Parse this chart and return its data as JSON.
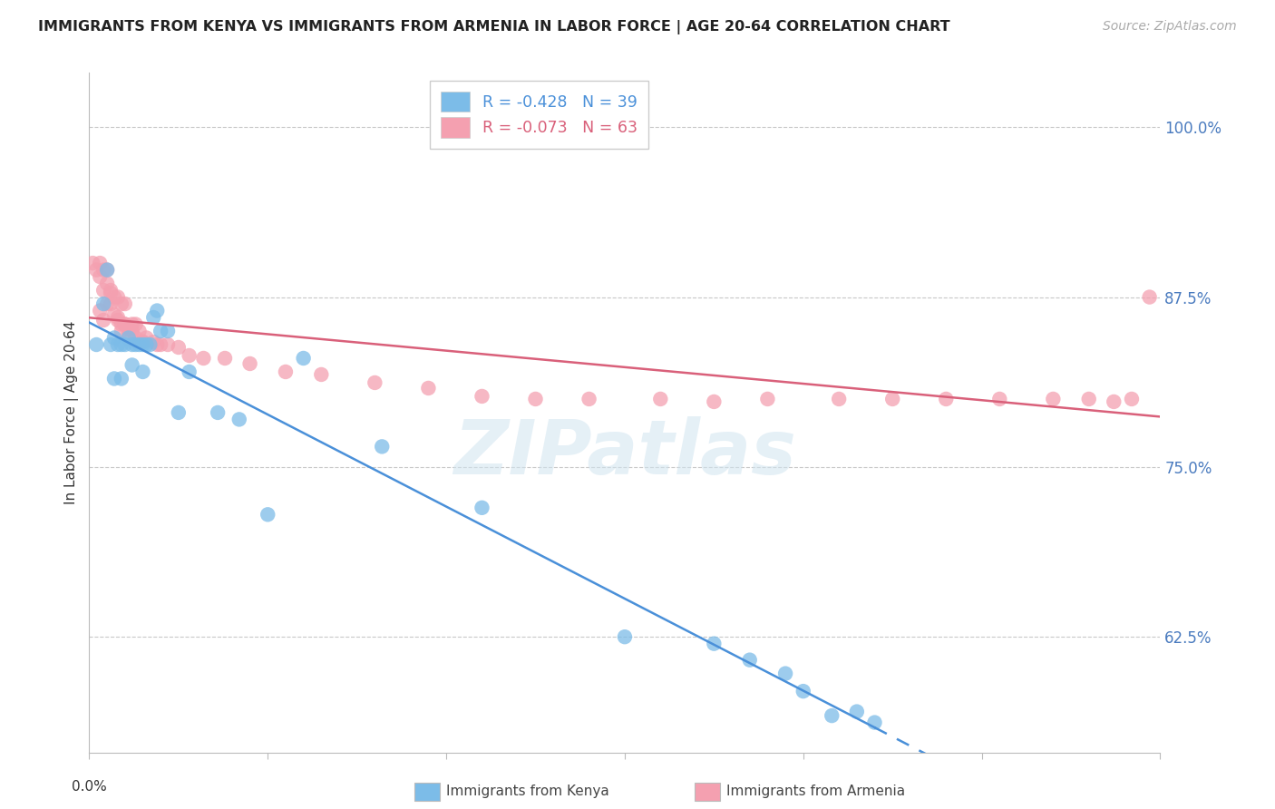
{
  "title": "IMMIGRANTS FROM KENYA VS IMMIGRANTS FROM ARMENIA IN LABOR FORCE | AGE 20-64 CORRELATION CHART",
  "source": "Source: ZipAtlas.com",
  "ylabel": "In Labor Force | Age 20-64",
  "ytick_labels": [
    "100.0%",
    "87.5%",
    "75.0%",
    "62.5%"
  ],
  "ytick_values": [
    1.0,
    0.875,
    0.75,
    0.625
  ],
  "xlim": [
    0.0,
    0.3
  ],
  "ylim": [
    0.54,
    1.04
  ],
  "kenya_R": "-0.428",
  "kenya_N": "39",
  "armenia_R": "-0.073",
  "armenia_N": "63",
  "kenya_color": "#7cbce8",
  "armenia_color": "#f4a0b0",
  "kenya_line_color": "#4a90d9",
  "armenia_line_color": "#d9607a",
  "watermark": "ZIPatlas",
  "kenya_x": [
    0.002,
    0.004,
    0.005,
    0.006,
    0.007,
    0.007,
    0.008,
    0.009,
    0.009,
    0.01,
    0.011,
    0.012,
    0.012,
    0.013,
    0.014,
    0.015,
    0.015,
    0.016,
    0.017,
    0.018,
    0.019,
    0.02,
    0.022,
    0.025,
    0.028,
    0.036,
    0.042,
    0.05,
    0.06,
    0.082,
    0.11,
    0.15,
    0.175,
    0.185,
    0.195,
    0.2,
    0.208,
    0.215,
    0.22
  ],
  "kenya_y": [
    0.84,
    0.87,
    0.895,
    0.84,
    0.845,
    0.815,
    0.84,
    0.84,
    0.815,
    0.84,
    0.845,
    0.84,
    0.825,
    0.84,
    0.84,
    0.84,
    0.82,
    0.84,
    0.84,
    0.86,
    0.865,
    0.85,
    0.85,
    0.79,
    0.82,
    0.79,
    0.785,
    0.715,
    0.83,
    0.765,
    0.72,
    0.625,
    0.62,
    0.608,
    0.598,
    0.585,
    0.567,
    0.57,
    0.562
  ],
  "armenia_x": [
    0.001,
    0.002,
    0.003,
    0.003,
    0.004,
    0.004,
    0.005,
    0.005,
    0.006,
    0.006,
    0.007,
    0.008,
    0.008,
    0.009,
    0.009,
    0.01,
    0.01,
    0.011,
    0.012,
    0.013,
    0.014,
    0.015,
    0.016,
    0.018,
    0.019,
    0.02,
    0.022,
    0.025,
    0.028,
    0.032,
    0.038,
    0.045,
    0.055,
    0.065,
    0.08,
    0.095,
    0.11,
    0.125,
    0.14,
    0.16,
    0.175,
    0.19,
    0.21,
    0.225,
    0.24,
    0.255,
    0.27,
    0.28,
    0.287,
    0.292,
    0.297,
    0.003,
    0.004,
    0.005,
    0.006,
    0.007,
    0.008,
    0.009,
    0.01,
    0.011,
    0.012,
    0.013,
    0.015
  ],
  "armenia_y": [
    0.9,
    0.895,
    0.9,
    0.89,
    0.895,
    0.88,
    0.895,
    0.87,
    0.878,
    0.88,
    0.875,
    0.875,
    0.86,
    0.87,
    0.855,
    0.87,
    0.855,
    0.852,
    0.855,
    0.855,
    0.85,
    0.842,
    0.845,
    0.842,
    0.84,
    0.84,
    0.84,
    0.838,
    0.832,
    0.83,
    0.83,
    0.826,
    0.82,
    0.818,
    0.812,
    0.808,
    0.802,
    0.8,
    0.8,
    0.8,
    0.798,
    0.8,
    0.8,
    0.8,
    0.8,
    0.8,
    0.8,
    0.8,
    0.798,
    0.8,
    0.875,
    0.865,
    0.858,
    0.885,
    0.87,
    0.862,
    0.858,
    0.85,
    0.855,
    0.848,
    0.85,
    0.845,
    0.842
  ]
}
